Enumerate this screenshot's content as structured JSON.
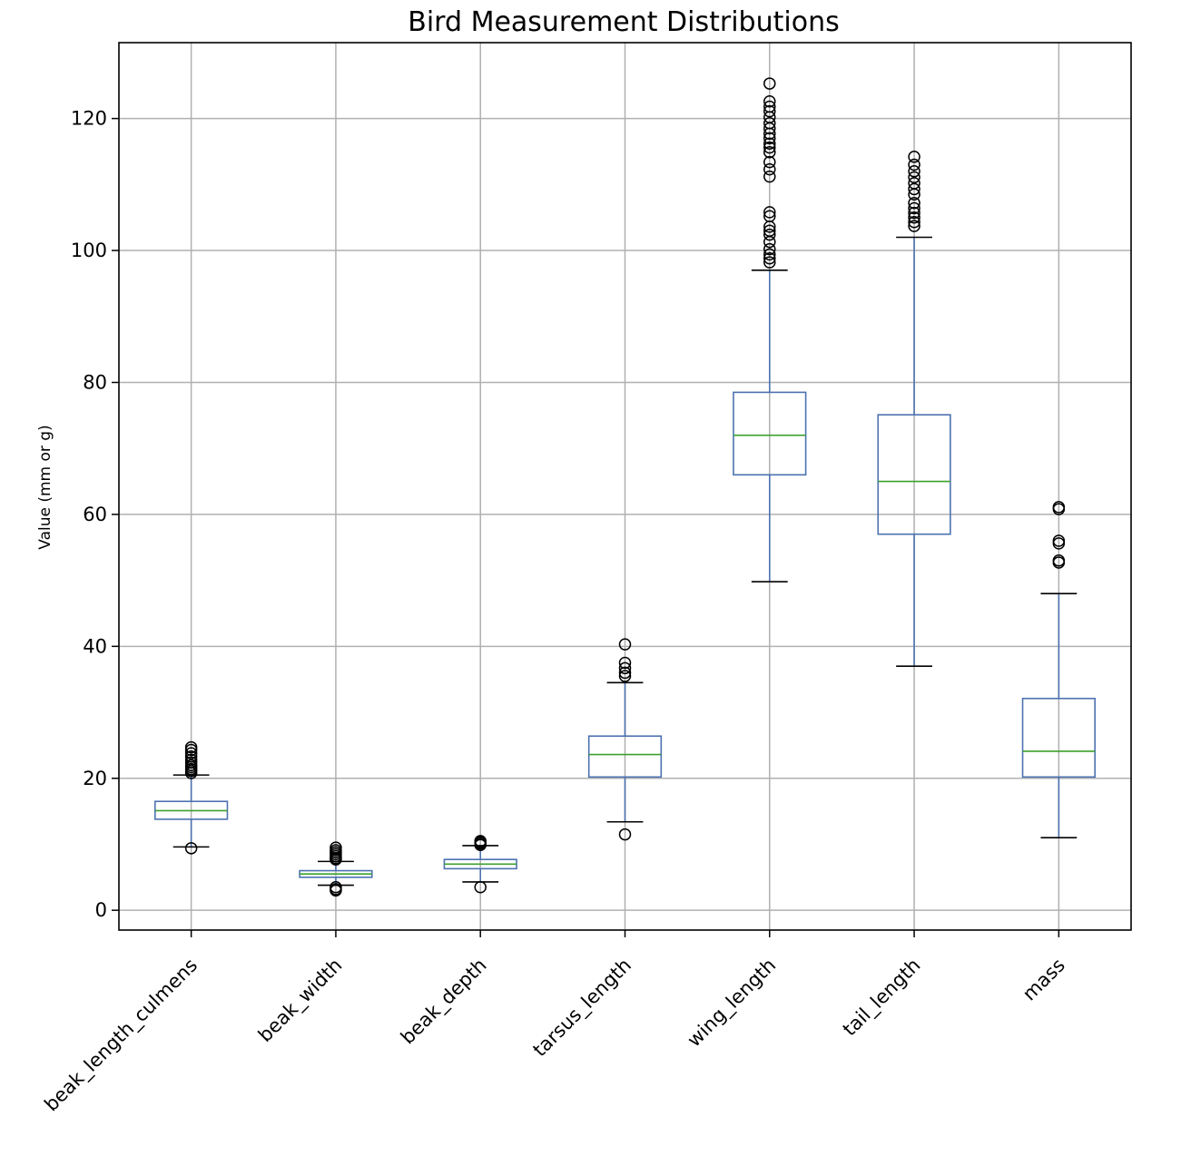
{
  "chart_data": {
    "type": "box",
    "title": "Bird Measurement Distributions",
    "xlabel": "",
    "ylabel": "Value (mm or g)",
    "ylim": [
      -3,
      131.5
    ],
    "yticks": [
      0,
      20,
      40,
      60,
      80,
      100,
      120
    ],
    "grid": true,
    "categories": [
      "beak_length_culmens",
      "beak_width",
      "beak_depth",
      "tarsus_length",
      "wing_length",
      "tail_length",
      "mass"
    ],
    "boxes": [
      {
        "name": "beak_length_culmens",
        "whisker_low": 9.6,
        "q1": 13.8,
        "median": 15.1,
        "q3": 16.5,
        "whisker_high": 20.5,
        "outliers": [
          9.4,
          20.8,
          21.1,
          21.4,
          21.7,
          22.0,
          22.4,
          22.8,
          23.3,
          23.8,
          24.3,
          24.7
        ]
      },
      {
        "name": "beak_width",
        "whisker_low": 3.8,
        "q1": 5.0,
        "median": 5.5,
        "q3": 6.0,
        "whisker_high": 7.4,
        "outliers": [
          3.0,
          3.2,
          3.5,
          7.7,
          7.9,
          8.2,
          8.5,
          8.8,
          9.1,
          9.5
        ]
      },
      {
        "name": "beak_depth",
        "whisker_low": 4.3,
        "q1": 6.3,
        "median": 7.0,
        "q3": 7.7,
        "whisker_high": 9.8,
        "outliers": [
          3.5,
          9.9,
          10.1,
          10.3,
          10.5
        ]
      },
      {
        "name": "tarsus_length",
        "whisker_low": 13.4,
        "q1": 20.2,
        "median": 23.6,
        "q3": 26.4,
        "whisker_high": 34.5,
        "outliers": [
          11.5,
          35.5,
          36.0,
          36.7,
          37.5,
          40.3
        ]
      },
      {
        "name": "wing_length",
        "whisker_low": 49.8,
        "q1": 66.0,
        "median": 72.0,
        "q3": 78.5,
        "whisker_high": 97.0,
        "outliers": [
          98.2,
          98.8,
          99.4,
          100.2,
          101.3,
          102.4,
          103.0,
          103.6,
          105.2,
          105.8,
          111.2,
          112.3,
          113.4,
          114.9,
          115.6,
          116.2,
          117.0,
          117.7,
          118.5,
          119.3,
          120.2,
          121.1,
          121.8,
          122.6,
          125.3
        ]
      },
      {
        "name": "tail_length",
        "whisker_low": 37.0,
        "q1": 57.0,
        "median": 65.0,
        "q3": 75.1,
        "whisker_high": 102.0,
        "outliers": [
          103.7,
          104.3,
          105.0,
          105.7,
          106.4,
          107.2,
          108.5,
          109.3,
          110.2,
          111.1,
          112.0,
          113.0,
          114.2
        ]
      },
      {
        "name": "mass",
        "whisker_low": 11.0,
        "q1": 20.2,
        "median": 24.1,
        "q3": 32.1,
        "whisker_high": 48.0,
        "outliers": [
          52.7,
          53.0,
          55.6,
          56.0,
          60.8,
          61.1
        ]
      }
    ],
    "colors": {
      "box": "#4c72b0",
      "median": "#3ca02c",
      "whisker_cap": "#000000",
      "outlier": "#000000",
      "grid": "#b0b0b0",
      "frame": "#000000"
    }
  }
}
